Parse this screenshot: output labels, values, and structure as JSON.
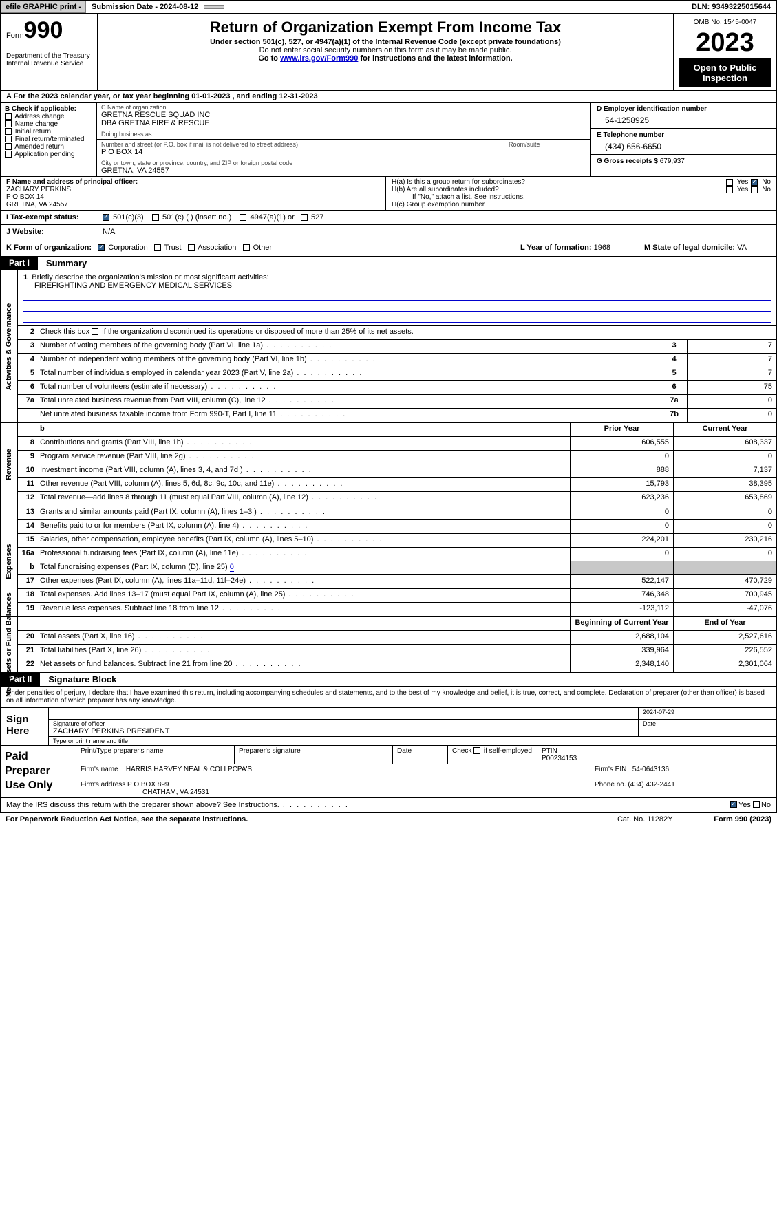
{
  "topbar": {
    "efile": "efile GRAPHIC print -",
    "submission": "Submission Date - 2024-08-12",
    "dln": "DLN: 93493225015644"
  },
  "header": {
    "form_word": "Form",
    "form_no": "990",
    "dept": "Department of the Treasury\nInternal Revenue Service",
    "title": "Return of Organization Exempt From Income Tax",
    "sub": "Under section 501(c), 527, or 4947(a)(1) of the Internal Revenue Code (except private foundations)",
    "sub2": "Do not enter social security numbers on this form as it may be made public.",
    "goto_pre": "Go to ",
    "goto_link": "www.irs.gov/Form990",
    "goto_post": " for instructions and the latest information.",
    "omb": "OMB No. 1545-0047",
    "year": "2023",
    "open": "Open to Public Inspection"
  },
  "line_a": "For the 2023 calendar year, or tax year beginning 01-01-2023    , and ending 12-31-2023",
  "box_b": {
    "head": "B Check if applicable:",
    "items": [
      "Address change",
      "Name change",
      "Initial return",
      "Final return/terminated",
      "Amended return",
      "Application pending"
    ]
  },
  "box_c": {
    "name_lab": "C Name of organization",
    "name1": "GRETNA RESCUE SQUAD INC",
    "name2": "DBA GRETNA FIRE & RESCUE",
    "dba_lab": "Doing business as",
    "street_lab": "Number and street (or P.O. box if mail is not delivered to street address)",
    "room_lab": "Room/suite",
    "street": "P O BOX 14",
    "city_lab": "City or town, state or province, country, and ZIP or foreign postal code",
    "city": "GRETNA, VA  24557"
  },
  "box_d": {
    "ein_lab": "D Employer identification number",
    "ein": "54-1258925",
    "tel_lab": "E Telephone number",
    "tel": "(434) 656-6650",
    "gross_lab": "G Gross receipts $",
    "gross": "679,937"
  },
  "box_f": {
    "lab": "F  Name and address of principal officer:",
    "name": "ZACHARY PERKINS",
    "addr1": "P O BOX 14",
    "addr2": "GRETNA, VA  24557"
  },
  "box_h": {
    "ha": "H(a)  Is this a group return for subordinates?",
    "hb": "H(b)  Are all subordinates included?",
    "hb_note": "If \"No,\" attach a list. See instructions.",
    "hc": "H(c)  Group exemption number",
    "yes": "Yes",
    "no": "No"
  },
  "row_i": {
    "lab": "I   Tax-exempt status:",
    "o1": "501(c)(3)",
    "o2": "501(c) (  ) (insert no.)",
    "o3": "4947(a)(1) or",
    "o4": "527"
  },
  "row_j": {
    "lab": "J   Website:",
    "val": "N/A"
  },
  "row_k": {
    "lab": "K Form of organization:",
    "o1": "Corporation",
    "o2": "Trust",
    "o3": "Association",
    "o4": "Other",
    "l_lab": "L Year of formation:",
    "l_val": "1968",
    "m_lab": "M State of legal domicile:",
    "m_val": "VA"
  },
  "part1": {
    "lab": "Part I",
    "title": "Summary"
  },
  "summary": {
    "l1_lab": "Briefly describe the organization's mission or most significant activities:",
    "l1_val": "FIREFIGHTING AND EMERGENCY MEDICAL SERVICES",
    "l2": "Check this box          if the organization discontinued its operations or disposed of more than 25% of its net assets.",
    "rows_gov": [
      {
        "n": "3",
        "d": "Number of voting members of the governing body (Part VI, line 1a)",
        "b": "3",
        "v": "7"
      },
      {
        "n": "4",
        "d": "Number of independent voting members of the governing body (Part VI, line 1b)",
        "b": "4",
        "v": "7"
      },
      {
        "n": "5",
        "d": "Total number of individuals employed in calendar year 2023 (Part V, line 2a)",
        "b": "5",
        "v": "7"
      },
      {
        "n": "6",
        "d": "Total number of volunteers (estimate if necessary)",
        "b": "6",
        "v": "75"
      },
      {
        "n": "7a",
        "d": "Total unrelated business revenue from Part VIII, column (C), line 12",
        "b": "7a",
        "v": "0"
      },
      {
        "n": "",
        "d": "Net unrelated business taxable income from Form 990-T, Part I, line 11",
        "b": "7b",
        "v": "0"
      }
    ],
    "hdr_prior": "Prior Year",
    "hdr_curr": "Current Year",
    "rows_rev": [
      {
        "n": "8",
        "d": "Contributions and grants (Part VIII, line 1h)",
        "py": "606,555",
        "cy": "608,337"
      },
      {
        "n": "9",
        "d": "Program service revenue (Part VIII, line 2g)",
        "py": "0",
        "cy": "0"
      },
      {
        "n": "10",
        "d": "Investment income (Part VIII, column (A), lines 3, 4, and 7d )",
        "py": "888",
        "cy": "7,137"
      },
      {
        "n": "11",
        "d": "Other revenue (Part VIII, column (A), lines 5, 6d, 8c, 9c, 10c, and 11e)",
        "py": "15,793",
        "cy": "38,395"
      },
      {
        "n": "12",
        "d": "Total revenue—add lines 8 through 11 (must equal Part VIII, column (A), line 12)",
        "py": "623,236",
        "cy": "653,869"
      }
    ],
    "rows_exp": [
      {
        "n": "13",
        "d": "Grants and similar amounts paid (Part IX, column (A), lines 1–3 )",
        "py": "0",
        "cy": "0"
      },
      {
        "n": "14",
        "d": "Benefits paid to or for members (Part IX, column (A), line 4)",
        "py": "0",
        "cy": "0"
      },
      {
        "n": "15",
        "d": "Salaries, other compensation, employee benefits (Part IX, column (A), lines 5–10)",
        "py": "224,201",
        "cy": "230,216"
      },
      {
        "n": "16a",
        "d": "Professional fundraising fees (Part IX, column (A), line 11e)",
        "py": "0",
        "cy": "0"
      }
    ],
    "l16b": "Total fundraising expenses (Part IX, column (D), line 25)",
    "l16b_val": "0",
    "rows_exp2": [
      {
        "n": "17",
        "d": "Other expenses (Part IX, column (A), lines 11a–11d, 11f–24e)",
        "py": "522,147",
        "cy": "470,729"
      },
      {
        "n": "18",
        "d": "Total expenses. Add lines 13–17 (must equal Part IX, column (A), line 25)",
        "py": "746,348",
        "cy": "700,945"
      },
      {
        "n": "19",
        "d": "Revenue less expenses. Subtract line 18 from line 12",
        "py": "-123,112",
        "cy": "-47,076"
      }
    ],
    "hdr_beg": "Beginning of Current Year",
    "hdr_end": "End of Year",
    "rows_net": [
      {
        "n": "20",
        "d": "Total assets (Part X, line 16)",
        "py": "2,688,104",
        "cy": "2,527,616"
      },
      {
        "n": "21",
        "d": "Total liabilities (Part X, line 26)",
        "py": "339,964",
        "cy": "226,552"
      },
      {
        "n": "22",
        "d": "Net assets or fund balances. Subtract line 21 from line 20",
        "py": "2,348,140",
        "cy": "2,301,064"
      }
    ],
    "side_gov": "Activities & Governance",
    "side_rev": "Revenue",
    "side_exp": "Expenses",
    "side_net": "Net Assets or Fund Balances"
  },
  "part2": {
    "lab": "Part II",
    "title": "Signature Block"
  },
  "sig_declare": "Under penalties of perjury, I declare that I have examined this return, including accompanying schedules and statements, and to the best of my knowledge and belief, it is true, correct, and complete. Declaration of preparer (other than officer) is based on all information of which preparer has any knowledge.",
  "sign": {
    "here": "Sign Here",
    "date": "2024-07-29",
    "sig_lab": "Signature of officer",
    "officer": "ZACHARY PERKINS  PRESIDENT",
    "type_lab": "Type or print name and title",
    "date_lab": "Date"
  },
  "prep": {
    "lab": "Paid Preparer Use Only",
    "h1": "Print/Type preparer's name",
    "h2": "Preparer's signature",
    "h3": "Date",
    "h4": "Check         if self-employed",
    "h5_lab": "PTIN",
    "h5": "P00234153",
    "firm_lab": "Firm's name",
    "firm": "HARRIS HARVEY NEAL & COLLPCPA'S",
    "ein_lab": "Firm's EIN",
    "ein": "54-0643136",
    "addr_lab": "Firm's address",
    "addr1": "P O BOX 899",
    "addr2": "CHATHAM, VA  24531",
    "phone_lab": "Phone no.",
    "phone": "(434) 432-2441"
  },
  "may": {
    "q": "May the IRS discuss this return with the preparer shown above? See Instructions.",
    "yes": "Yes",
    "no": "No"
  },
  "foot": {
    "l": "For Paperwork Reduction Act Notice, see the separate instructions.",
    "c": "Cat. No. 11282Y",
    "r": "Form 990 (2023)"
  }
}
